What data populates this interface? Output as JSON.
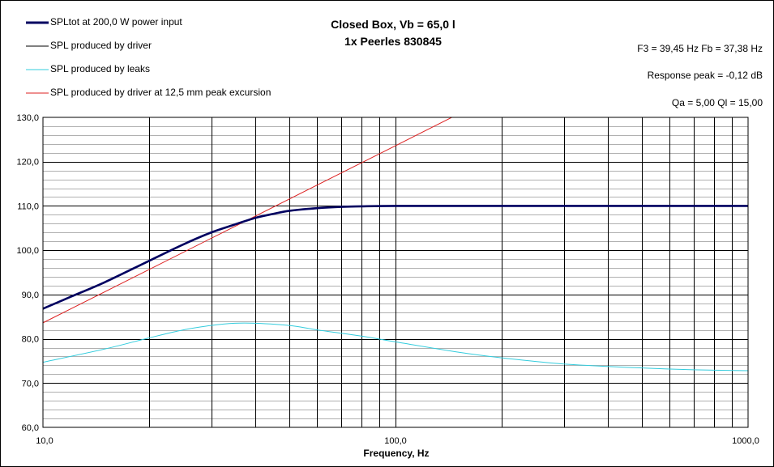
{
  "window": {
    "title_line1": "Closed Box, Vb = 65,0 l",
    "title_line2": "1x Peerles 830845"
  },
  "info": {
    "f3_fb": "F3 = 39,45 Hz  Fb = 37,38 Hz",
    "response_peak": "Response peak = -0,12 dB",
    "qa_ql": "Qa = 5,00  Ql = 15,00"
  },
  "colors": {
    "spltot": "#000060",
    "driver": "#000000",
    "leaks": "#33ccdd",
    "excursion": "#dd2222",
    "grid_major": "#000000",
    "grid_minor": "#b0b0b0"
  },
  "chart_data": {
    "type": "line",
    "title": "Closed Box, Vb = 65,0 l\n1x Peerles 830845",
    "xlabel": "Frequency, Hz",
    "ylabel": "",
    "xscale": "log",
    "xlim": [
      10,
      1000
    ],
    "ylim": [
      60,
      130
    ],
    "x_ticks": [
      "10,0",
      "100,0",
      "1000,0"
    ],
    "y_ticks": [
      "60,0",
      "70,0",
      "80,0",
      "90,0",
      "100,0",
      "110,0",
      "120,0",
      "130,0"
    ],
    "grid": true,
    "legend_position": "top-left",
    "series": [
      {
        "name": "SPLtot at 200,0 W power input",
        "x": [
          10,
          12,
          15,
          20,
          25,
          30,
          35,
          40,
          45,
          50,
          60,
          70,
          80,
          100,
          150,
          200,
          300,
          500,
          1000
        ],
        "y": [
          86.8,
          89.5,
          92.8,
          97.6,
          101.3,
          104.0,
          105.8,
          107.3,
          108.2,
          108.9,
          109.5,
          109.8,
          109.9,
          110.0,
          110.0,
          110.0,
          110.0,
          110.0,
          110.0
        ]
      },
      {
        "name": "SPL produced by driver",
        "x": [
          10,
          12,
          15,
          20,
          25,
          30,
          35,
          40,
          45,
          50,
          60,
          70,
          80,
          100,
          150,
          200,
          300,
          500,
          1000
        ],
        "y": [
          86.8,
          89.5,
          92.8,
          97.6,
          101.3,
          104.0,
          105.8,
          107.3,
          108.2,
          108.9,
          109.5,
          109.8,
          109.9,
          110.0,
          110.0,
          110.0,
          110.0,
          110.0,
          110.0
        ]
      },
      {
        "name": "SPL produced by leaks",
        "x": [
          10,
          15,
          20,
          25,
          30,
          35,
          40,
          50,
          60,
          80,
          100,
          150,
          200,
          300,
          500,
          700,
          1000
        ],
        "y": [
          74.7,
          77.7,
          80.2,
          82.0,
          83.0,
          83.5,
          83.5,
          83.0,
          82.0,
          80.6,
          79.3,
          77.0,
          75.7,
          74.3,
          73.4,
          73.0,
          72.8
        ]
      },
      {
        "name": "SPL produced by driver at 12,5 mm peak excursion",
        "x": [
          10,
          100,
          153
        ],
        "y": [
          83.6,
          123.6,
          131.0
        ]
      }
    ]
  }
}
